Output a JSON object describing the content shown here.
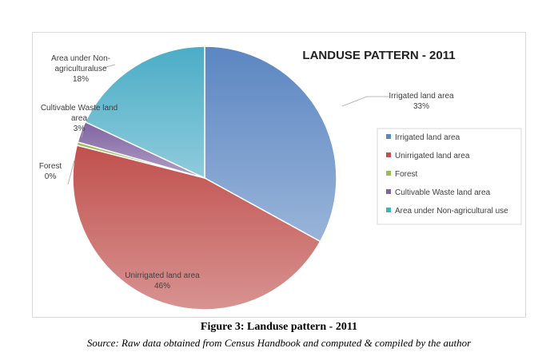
{
  "chart_data": {
    "type": "pie",
    "title": "LANDUSE PATTERN - 2011",
    "slices": [
      {
        "name": "Irrigated land area",
        "value": 33,
        "label_lines": [
          "Irrigated land area",
          "33%"
        ],
        "color": "#5b86c2"
      },
      {
        "name": "Unirrigated land area",
        "value": 46,
        "label_lines": [
          "Unirrigated land area",
          "46%"
        ],
        "color": "#c0504d"
      },
      {
        "name": "Forest",
        "value": 0.4,
        "label_lines": [
          "Forest",
          "0%"
        ],
        "color": "#9bbb59"
      },
      {
        "name": "Cultivable Waste land area",
        "value": 2.6,
        "label_lines": [
          "Cultivable Waste land",
          "area",
          "3%"
        ],
        "color": "#8064a2"
      },
      {
        "name": "Area under Non-agricultural use",
        "value": 18,
        "label_lines": [
          "Area under Non-",
          "agriculturaluse",
          "18%"
        ],
        "color": "#4bacc6"
      }
    ],
    "legend": {
      "position": "right",
      "entries": [
        "Irrigated land area",
        "Unirrigated land area",
        "Forest",
        "Cultivable Waste land area",
        "Area under Non-agricultural use"
      ]
    }
  },
  "caption": "Figure 3: Landuse pattern - 2011",
  "source": "Source: Raw data obtained from Census Handbook and computed & compiled by the author"
}
